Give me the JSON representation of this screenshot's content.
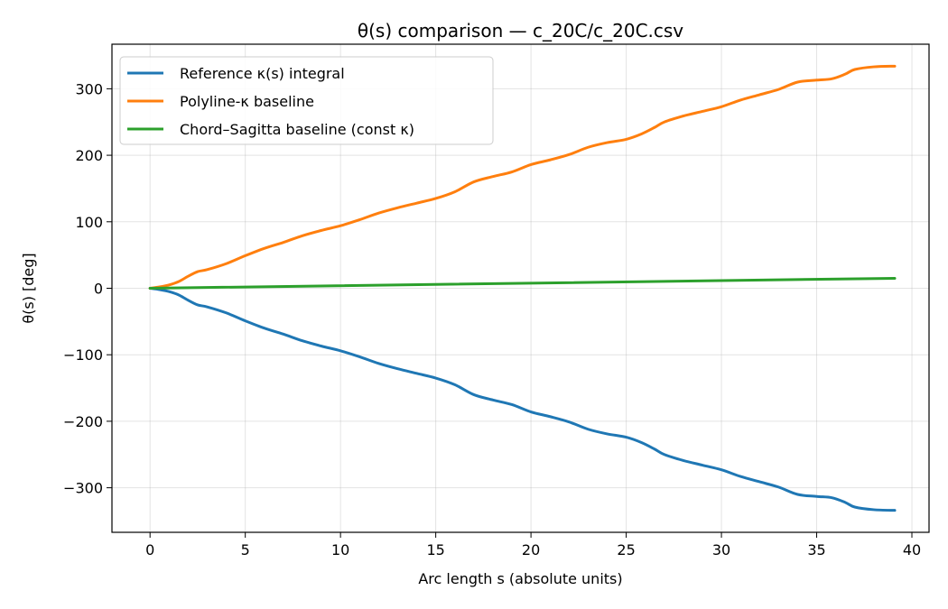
{
  "chart_data": {
    "type": "line",
    "title": "θ(s) comparison — c_20C/c_20C.csv",
    "xlabel": "Arc length s (absolute units)",
    "ylabel": "θ(s) [deg]",
    "xlim": [
      -2,
      40.9
    ],
    "ylim": [
      -367,
      367
    ],
    "xticks": [
      0,
      5,
      10,
      15,
      20,
      25,
      30,
      35,
      40
    ],
    "xtick_labels": [
      "0",
      "5",
      "10",
      "15",
      "20",
      "25",
      "30",
      "35",
      "40"
    ],
    "yticks": [
      -300,
      -200,
      -100,
      0,
      100,
      200,
      300
    ],
    "ytick_labels": [
      "−300",
      "−200",
      "−100",
      "0",
      "100",
      "200",
      "300"
    ],
    "grid": true,
    "legend_position": "upper-left",
    "series": [
      {
        "name": "Reference κ(s) integral",
        "color": "#1f77b4",
        "x": [
          0,
          0.5,
          1,
          1.5,
          2,
          2.5,
          3,
          4,
          5,
          6,
          7,
          8,
          9,
          10,
          11,
          12,
          13,
          14,
          15,
          16,
          17,
          18,
          19,
          20,
          21,
          22,
          23,
          24,
          25,
          25.8,
          26.5,
          27,
          28,
          29,
          30,
          31,
          32,
          33,
          34,
          35,
          35.8,
          36.5,
          37,
          38,
          39.1
        ],
        "y": [
          0,
          -2,
          -5,
          -10,
          -18,
          -25,
          -28,
          -37,
          -49,
          -60,
          -69,
          -79,
          -87,
          -94,
          -103,
          -113,
          -121,
          -128,
          -135,
          -145,
          -160,
          -168,
          -175,
          -186,
          -193,
          -201,
          -212,
          -219,
          -224,
          -232,
          -242,
          -250,
          -259,
          -266,
          -273,
          -283,
          -291,
          -299,
          -310,
          -313,
          -315,
          -322,
          -329,
          -333,
          -334
        ]
      },
      {
        "name": "Polyline-κ baseline",
        "color": "#ff7f0e",
        "x": [
          0,
          0.5,
          1,
          1.5,
          2,
          2.5,
          3,
          4,
          5,
          6,
          7,
          8,
          9,
          10,
          11,
          12,
          13,
          14,
          15,
          16,
          17,
          18,
          19,
          20,
          21,
          22,
          23,
          24,
          25,
          25.8,
          26.5,
          27,
          28,
          29,
          30,
          31,
          32,
          33,
          34,
          35,
          35.8,
          36.5,
          37,
          38,
          39.1
        ],
        "y": [
          0,
          2,
          5,
          10,
          18,
          25,
          28,
          37,
          49,
          60,
          69,
          79,
          87,
          94,
          103,
          113,
          121,
          128,
          135,
          145,
          160,
          168,
          175,
          186,
          193,
          201,
          212,
          219,
          224,
          232,
          242,
          250,
          259,
          266,
          273,
          283,
          291,
          299,
          310,
          313,
          315,
          322,
          329,
          333,
          334
        ]
      },
      {
        "name": "Chord–Sagitta baseline (const κ)",
        "color": "#2ca02c",
        "x": [
          0,
          39.1
        ],
        "y": [
          0,
          15
        ]
      }
    ]
  }
}
